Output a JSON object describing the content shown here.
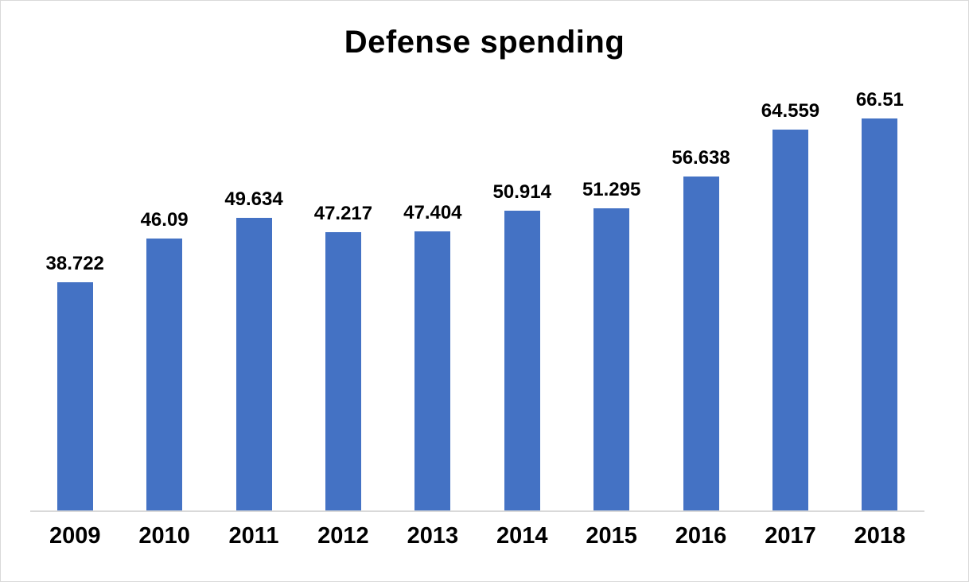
{
  "chart_data": {
    "type": "bar",
    "title": "Defense spending",
    "categories": [
      "2009",
      "2010",
      "2011",
      "2012",
      "2013",
      "2014",
      "2015",
      "2016",
      "2017",
      "2018"
    ],
    "values": [
      38.722,
      46.09,
      49.634,
      47.217,
      47.404,
      50.914,
      51.295,
      56.638,
      64.559,
      66.51
    ],
    "value_labels": [
      "38.722",
      "46.09",
      "49.634",
      "47.217",
      "47.404",
      "50.914",
      "51.295",
      "56.638",
      "64.559",
      "66.51"
    ],
    "xlabel": "",
    "ylabel": "",
    "ylim": [
      0,
      75
    ],
    "grid": false,
    "legend": false,
    "data_labels_position": "above-bar",
    "colors": {
      "bar_fill": "#4472C4",
      "axis_line": "#D9D9D9",
      "text": "#000000",
      "background": "#FFFFFF"
    }
  }
}
